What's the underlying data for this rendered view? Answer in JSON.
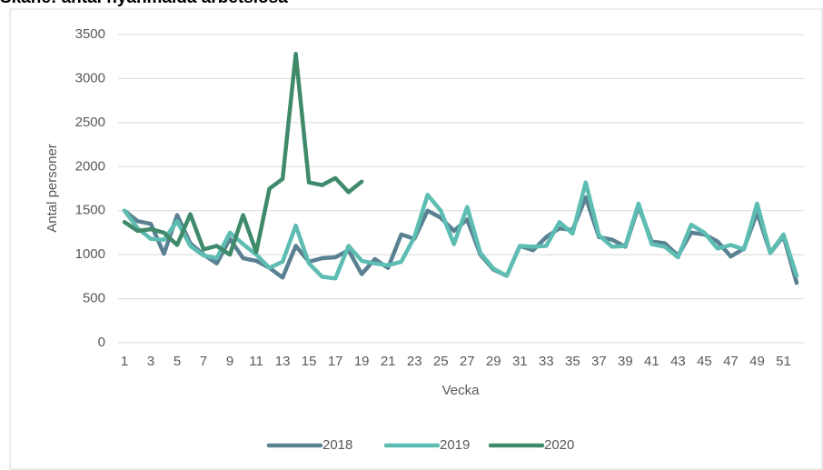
{
  "chart_data": {
    "type": "line",
    "title": "Skåne: antal nyanmälda arbetslösa",
    "x_label": "Vecka",
    "y_label": "Antal personer",
    "categories": [
      1,
      null,
      3,
      null,
      5,
      null,
      7,
      null,
      9,
      null,
      11,
      null,
      13,
      null,
      15,
      null,
      17,
      null,
      19,
      null,
      21,
      null,
      23,
      null,
      25,
      null,
      27,
      null,
      29,
      null,
      31,
      null,
      33,
      null,
      35,
      null,
      37,
      null,
      39,
      null,
      41,
      null,
      43,
      null,
      45,
      null,
      47,
      null,
      49,
      null,
      51,
      null
    ],
    "series": [
      {
        "name": "2018",
        "color": "#5a8191",
        "values": [
          1500,
          1380,
          1350,
          1010,
          1450,
          1130,
          1000,
          900,
          1180,
          960,
          930,
          850,
          740,
          1100,
          920,
          960,
          970,
          1050,
          780,
          950,
          850,
          1230,
          1180,
          1500,
          1420,
          1270,
          1400,
          1000,
          830,
          760,
          1100,
          1050,
          1200,
          1300,
          1280,
          1650,
          1200,
          1170,
          1090,
          1550,
          1150,
          1130,
          990,
          1250,
          1230,
          1150,
          980,
          1070,
          1480,
          1020,
          1210,
          680
        ]
      },
      {
        "name": "2019",
        "color": "#5dbdb2",
        "values": [
          1500,
          1300,
          1180,
          1170,
          1380,
          1100,
          990,
          960,
          1250,
          1120,
          1000,
          850,
          920,
          1330,
          900,
          750,
          730,
          1100,
          930,
          900,
          880,
          920,
          1200,
          1680,
          1500,
          1120,
          1540,
          1020,
          840,
          760,
          1100,
          1090,
          1100,
          1370,
          1240,
          1820,
          1220,
          1090,
          1100,
          1580,
          1120,
          1090,
          970,
          1340,
          1250,
          1070,
          1110,
          1060,
          1580,
          1020,
          1230,
          760
        ]
      },
      {
        "name": "2020",
        "color": "#3f8a6b",
        "values": [
          1370,
          1270,
          1290,
          1250,
          1110,
          1460,
          1060,
          1100,
          1000,
          1450,
          1030,
          1750,
          1860,
          3280,
          1820,
          1790,
          1870,
          1710,
          1830,
          null,
          null,
          null,
          null,
          null,
          null,
          null,
          null,
          null,
          null,
          null,
          null,
          null,
          null,
          null,
          null,
          null,
          null,
          null,
          null,
          null,
          null,
          null,
          null,
          null,
          null,
          null,
          null,
          null,
          null,
          null,
          null,
          null
        ]
      }
    ],
    "ylim": [
      0,
      3500
    ],
    "yticks": [
      0,
      500,
      1000,
      1500,
      2000,
      2500,
      3000,
      3500
    ],
    "grid": true,
    "legend": "bottom"
  }
}
